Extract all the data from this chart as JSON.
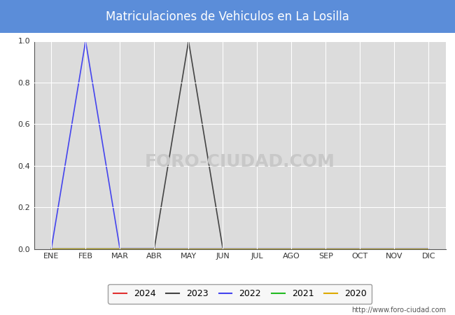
{
  "title": "Matriculaciones de Vehiculos en La Losilla",
  "title_bg_color": "#5b8dd9",
  "title_text_color": "#ffffff",
  "plot_bg_color": "#dcdcdc",
  "grid_color": "#ffffff",
  "months": [
    "ENE",
    "FEB",
    "MAR",
    "ABR",
    "MAY",
    "JUN",
    "JUL",
    "AGO",
    "SEP",
    "OCT",
    "NOV",
    "DIC"
  ],
  "ylim": [
    0.0,
    1.0
  ],
  "yticks": [
    0.0,
    0.2,
    0.4,
    0.6,
    0.8,
    1.0
  ],
  "series": {
    "2024": {
      "color": "#e03030",
      "data": [
        null,
        null,
        null,
        null,
        null,
        null,
        null,
        null,
        null,
        null,
        null,
        null
      ]
    },
    "2023": {
      "color": "#444444",
      "data": [
        0.0,
        0.0,
        0.0,
        0.0,
        1.0,
        0.0,
        null,
        null,
        null,
        null,
        null,
        null
      ]
    },
    "2022": {
      "color": "#4444ee",
      "data": [
        0.0,
        1.0,
        0.0,
        0.0,
        0.0,
        0.0,
        0.0,
        0.0,
        0.0,
        0.0,
        0.0,
        0.0
      ]
    },
    "2021": {
      "color": "#22bb22",
      "data": [
        0.0,
        0.0,
        0.0,
        0.0,
        0.0,
        0.0,
        0.0,
        0.0,
        0.0,
        0.0,
        0.0,
        0.0
      ]
    },
    "2020": {
      "color": "#ddaa00",
      "data": [
        0.0,
        0.0,
        0.0,
        0.0,
        0.0,
        0.0,
        0.0,
        0.0,
        0.0,
        0.0,
        0.0,
        0.0
      ]
    }
  },
  "watermark": "FORO-CIUDAD.COM",
  "watermark_color": "#c8c8c8",
  "url": "http://www.foro-ciudad.com",
  "legend_years": [
    "2024",
    "2023",
    "2022",
    "2021",
    "2020"
  ],
  "figsize": [
    6.5,
    4.5
  ],
  "dpi": 100
}
